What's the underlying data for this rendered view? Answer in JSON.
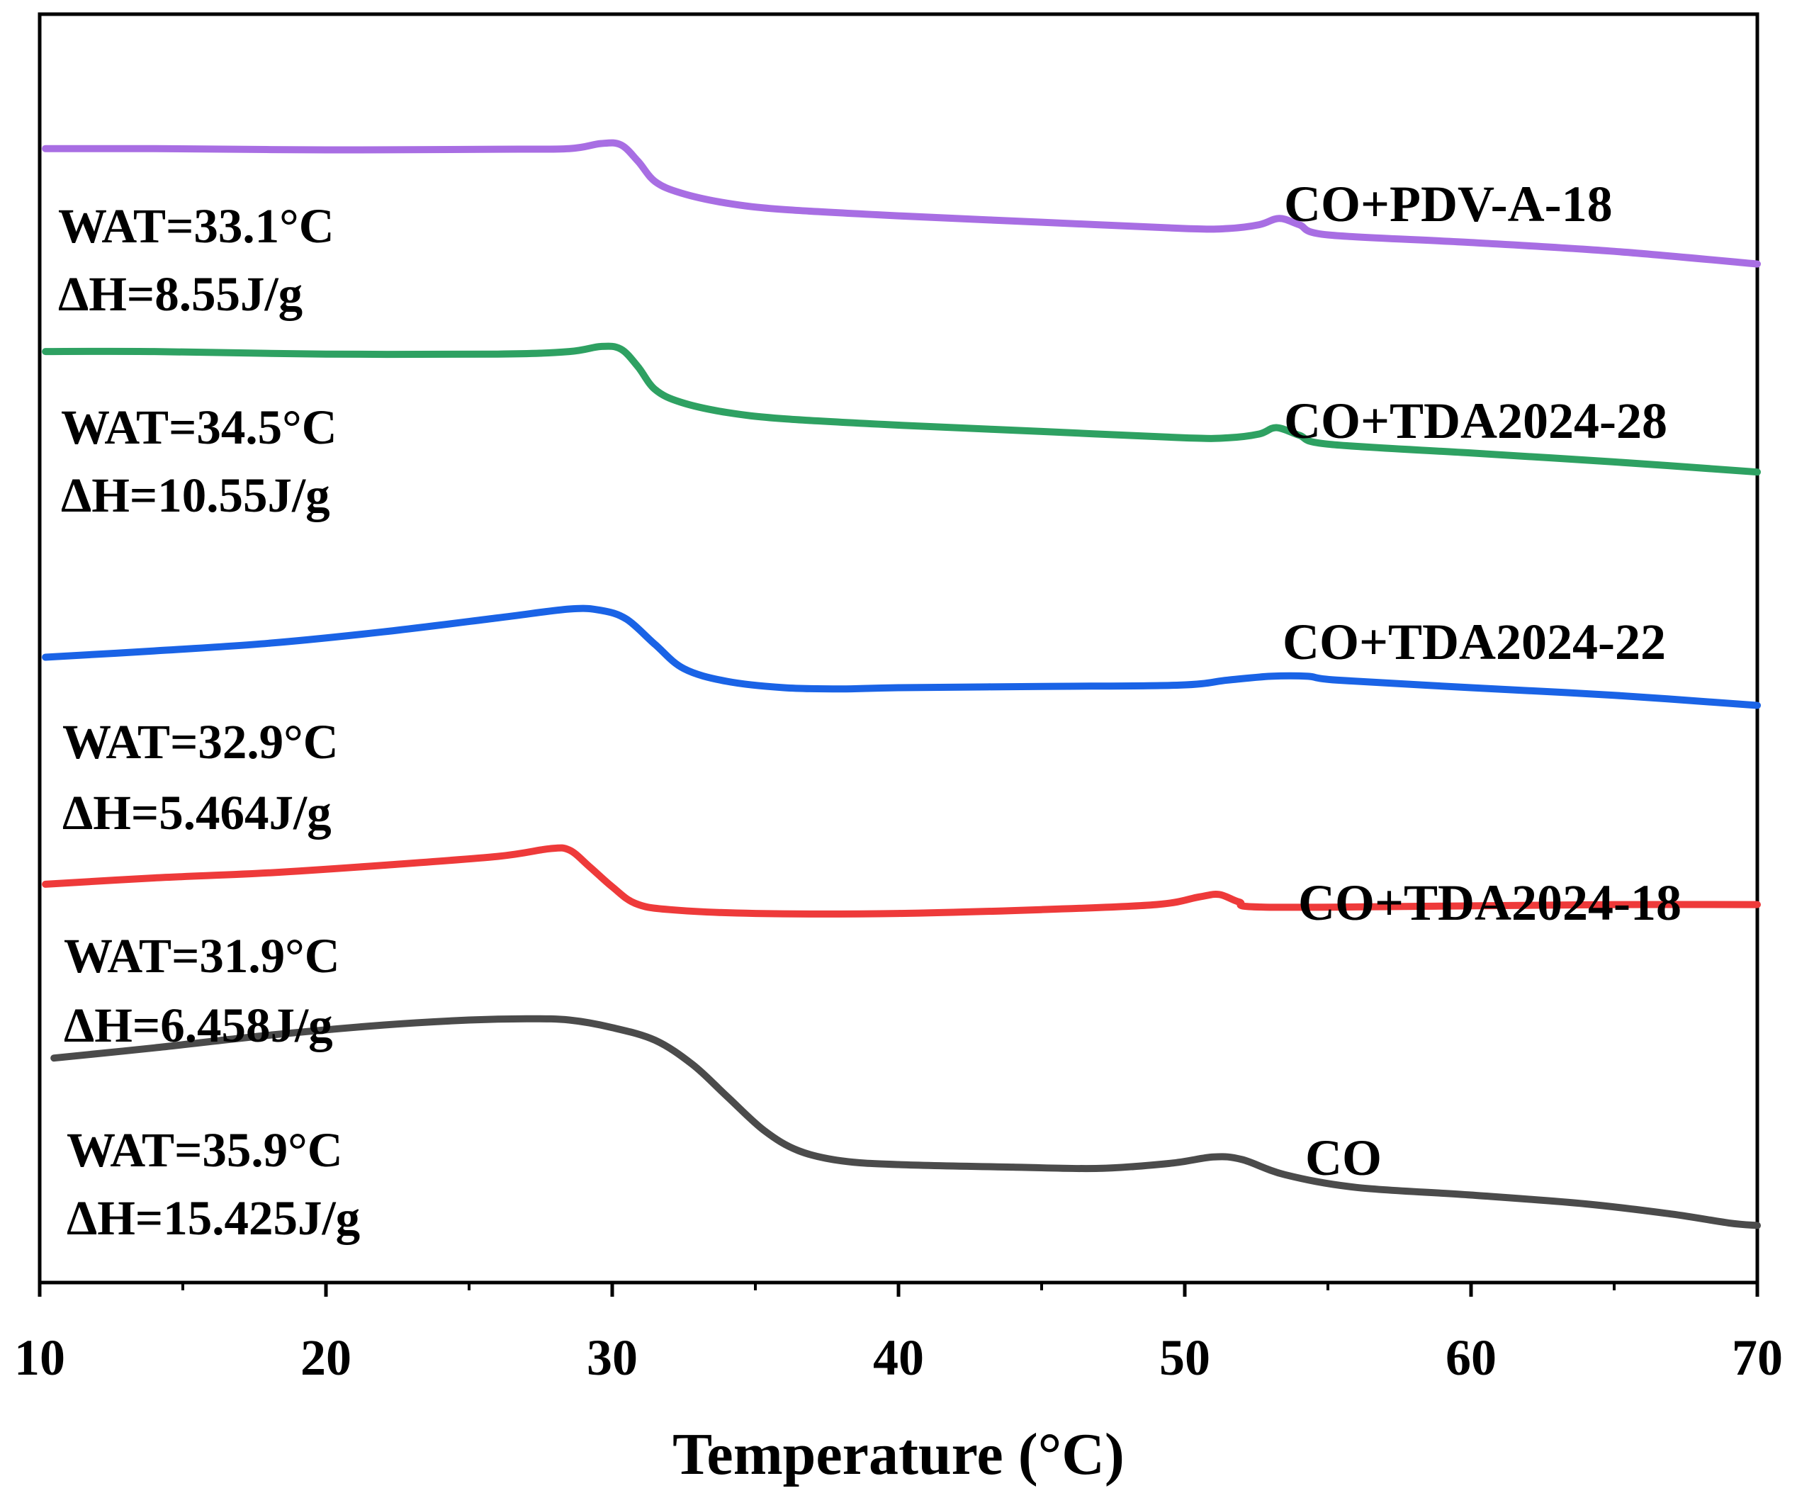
{
  "chart_data": {
    "type": "line",
    "title": "",
    "xlabel": "Temperature (°C)",
    "ylabel": "",
    "xlim": [
      10,
      70
    ],
    "ylim": [
      0,
      100
    ],
    "x_ticks": [
      10,
      20,
      30,
      40,
      50,
      60,
      70
    ],
    "x_minor_ticks": [
      15,
      25,
      35,
      45,
      55,
      65
    ],
    "series": [
      {
        "name": "CO+PDV-A-18",
        "color": "#a86ee3",
        "wat": "WAT=33.1°C",
        "dh": "ΔH=8.55J/g",
        "points": [
          [
            10.2,
            89.4
          ],
          [
            14,
            89.4
          ],
          [
            20,
            89.3
          ],
          [
            26,
            89.35
          ],
          [
            28.5,
            89.4
          ],
          [
            29.6,
            89.8
          ],
          [
            30.3,
            89.7
          ],
          [
            30.9,
            88.4
          ],
          [
            31.5,
            86.8
          ],
          [
            32.4,
            85.9
          ],
          [
            34,
            85.1
          ],
          [
            36,
            84.6
          ],
          [
            40,
            84.1
          ],
          [
            45,
            83.6
          ],
          [
            50,
            83.1
          ],
          [
            51.5,
            83.1
          ],
          [
            52.6,
            83.4
          ],
          [
            53.3,
            83.9
          ],
          [
            54,
            83.4
          ],
          [
            55,
            82.6
          ],
          [
            60,
            82.0
          ],
          [
            65,
            81.3
          ],
          [
            70,
            80.3
          ]
        ]
      },
      {
        "name": "CO+TDA2024-28",
        "color": "#2ea162",
        "wat": "WAT=34.5°C",
        "dh": "ΔH=10.55J/g",
        "points": [
          [
            10.2,
            73.4
          ],
          [
            14,
            73.4
          ],
          [
            20,
            73.2
          ],
          [
            26,
            73.2
          ],
          [
            28.5,
            73.4
          ],
          [
            29.6,
            73.8
          ],
          [
            30.3,
            73.6
          ],
          [
            30.9,
            72.2
          ],
          [
            31.5,
            70.4
          ],
          [
            32.4,
            69.4
          ],
          [
            34,
            68.6
          ],
          [
            36,
            68.1
          ],
          [
            40,
            67.6
          ],
          [
            45,
            67.1
          ],
          [
            50,
            66.6
          ],
          [
            51.5,
            66.6
          ],
          [
            52.6,
            66.9
          ],
          [
            53.2,
            67.4
          ],
          [
            54,
            66.8
          ],
          [
            55,
            66.1
          ],
          [
            60,
            65.4
          ],
          [
            65,
            64.7
          ],
          [
            70,
            63.9
          ]
        ]
      },
      {
        "name": "CO+TDA2024-22",
        "color": "#1a63e6",
        "wat": "WAT=32.9°C",
        "dh": "ΔH=5.464J/g",
        "points": [
          [
            10.2,
            49.3
          ],
          [
            14,
            49.8
          ],
          [
            18,
            50.4
          ],
          [
            22,
            51.3
          ],
          [
            26,
            52.4
          ],
          [
            28.5,
            53.1
          ],
          [
            29.6,
            53.0
          ],
          [
            30.5,
            52.3
          ],
          [
            31.5,
            50.3
          ],
          [
            32.5,
            48.4
          ],
          [
            34,
            47.4
          ],
          [
            36,
            46.9
          ],
          [
            38,
            46.8
          ],
          [
            40,
            46.9
          ],
          [
            45,
            47.0
          ],
          [
            49.8,
            47.1
          ],
          [
            51.5,
            47.5
          ],
          [
            53,
            47.8
          ],
          [
            54.3,
            47.8
          ],
          [
            55.3,
            47.5
          ],
          [
            60,
            46.9
          ],
          [
            65,
            46.3
          ],
          [
            70,
            45.5
          ]
        ]
      },
      {
        "name": "CO+TDA2024-18",
        "color": "#ee3a3a",
        "wat": "WAT=31.9°C",
        "dh": "ΔH=6.458J/g",
        "points": [
          [
            10.2,
            31.4
          ],
          [
            14,
            31.9
          ],
          [
            18,
            32.3
          ],
          [
            22,
            32.9
          ],
          [
            26,
            33.6
          ],
          [
            27.8,
            34.2
          ],
          [
            28.5,
            34.1
          ],
          [
            29.2,
            32.8
          ],
          [
            30,
            31.2
          ],
          [
            30.8,
            29.9
          ],
          [
            32,
            29.4
          ],
          [
            35,
            29.1
          ],
          [
            40,
            29.1
          ],
          [
            45,
            29.4
          ],
          [
            49,
            29.8
          ],
          [
            50.5,
            30.4
          ],
          [
            51.2,
            30.6
          ],
          [
            51.9,
            30.0
          ],
          [
            52.8,
            29.6
          ],
          [
            60,
            29.7
          ],
          [
            65,
            29.8
          ],
          [
            70,
            29.8
          ]
        ]
      },
      {
        "name": "CO",
        "color": "#4b4b4b",
        "wat": "WAT=35.9°C",
        "dh": "ΔH=15.425J/g",
        "points": [
          [
            10.5,
            17.7
          ],
          [
            14,
            18.5
          ],
          [
            18,
            19.5
          ],
          [
            22,
            20.3
          ],
          [
            25,
            20.7
          ],
          [
            27,
            20.8
          ],
          [
            28.5,
            20.7
          ],
          [
            30,
            20.1
          ],
          [
            31.5,
            19.1
          ],
          [
            32.8,
            17.2
          ],
          [
            34,
            14.7
          ],
          [
            35.3,
            12.0
          ],
          [
            36.5,
            10.4
          ],
          [
            38,
            9.6
          ],
          [
            40,
            9.3
          ],
          [
            44,
            9.1
          ],
          [
            47,
            9.0
          ],
          [
            49.5,
            9.4
          ],
          [
            51,
            9.9
          ],
          [
            52,
            9.7
          ],
          [
            53.5,
            8.5
          ],
          [
            56,
            7.5
          ],
          [
            60,
            6.9
          ],
          [
            64,
            6.2
          ],
          [
            67,
            5.4
          ],
          [
            69,
            4.7
          ],
          [
            70,
            4.5
          ]
        ]
      }
    ]
  }
}
